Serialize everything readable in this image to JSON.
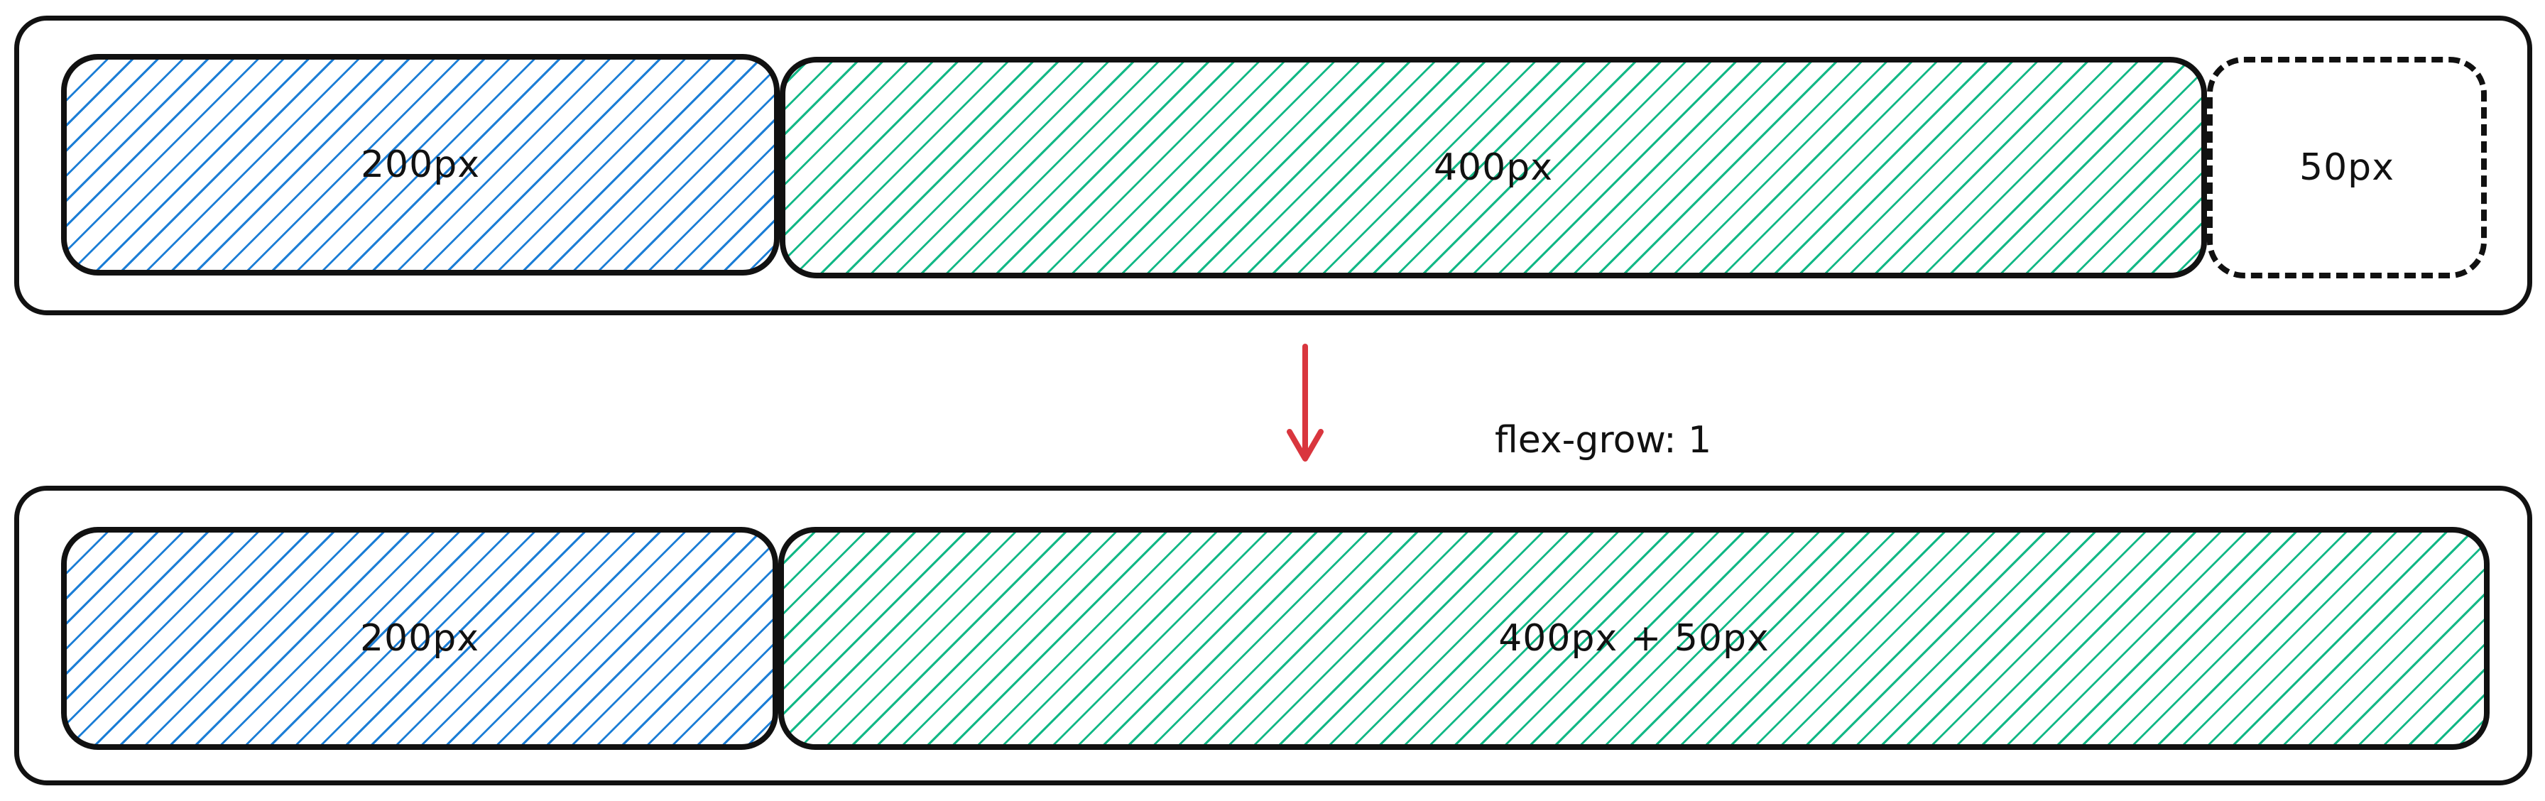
{
  "top_row": {
    "items": [
      {
        "label": "200px"
      },
      {
        "label": "400px"
      },
      {
        "label": "50px"
      }
    ]
  },
  "transition": {
    "caption": "flex-grow: 1",
    "arrow_color": "#d9363e"
  },
  "bottom_row": {
    "items": [
      {
        "label": "200px"
      },
      {
        "label": "400px + 50px"
      }
    ]
  },
  "colors": {
    "blue_hatch": "#1c7ed6",
    "green_hatch": "#12b886",
    "stroke": "#111111"
  }
}
